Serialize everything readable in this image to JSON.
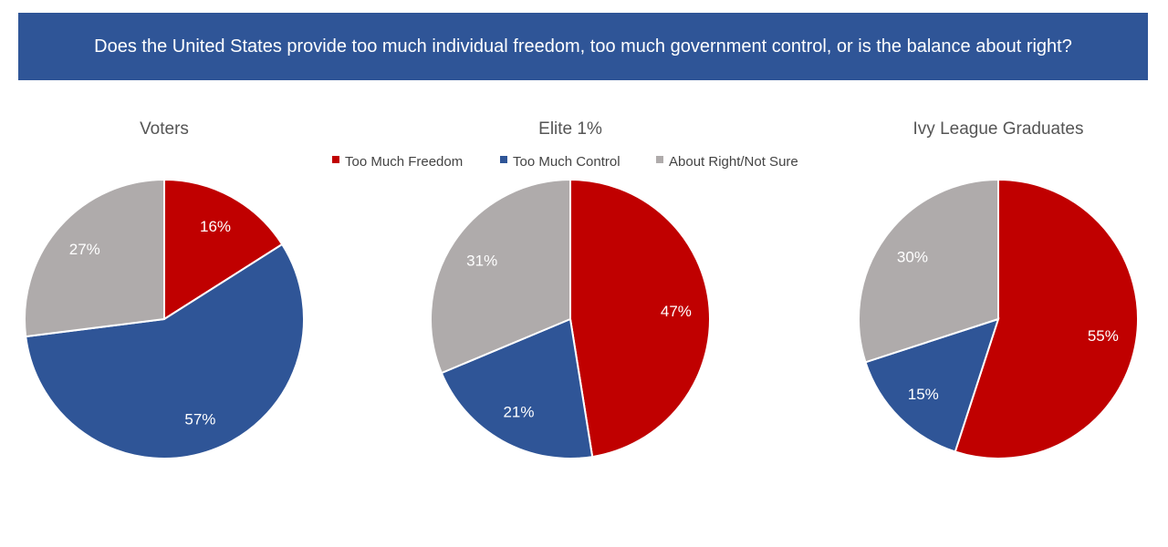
{
  "title": "Does the United States provide too much individual freedom, too much government control, or is the balance about right?",
  "chart_data": [
    {
      "type": "pie",
      "title": "Voters",
      "categories": [
        "Too Much Freedom",
        "Too Much Control",
        "About Right/Not Sure"
      ],
      "values": [
        16,
        57,
        27
      ],
      "labels": [
        "16%",
        "57%",
        "27%"
      ]
    },
    {
      "type": "pie",
      "title": "Elite 1%",
      "categories": [
        "Too Much Freedom",
        "Too Much Control",
        "About Right/Not Sure"
      ],
      "values": [
        47,
        21,
        31
      ],
      "labels": [
        "47%",
        "21%",
        "31%"
      ]
    },
    {
      "type": "pie",
      "title": "Ivy League Graduates",
      "categories": [
        "Too Much Freedom",
        "Too Much Control",
        "About Right/Not Sure"
      ],
      "values": [
        55,
        15,
        30
      ],
      "labels": [
        "55%",
        "15%",
        "30%"
      ]
    }
  ],
  "legend": {
    "position": "top",
    "items": [
      "Too Much Freedom",
      "Too Much Control",
      "About Right/Not Sure"
    ]
  },
  "colors": [
    "#C00000",
    "#2F5597",
    "#AFABAB"
  ]
}
